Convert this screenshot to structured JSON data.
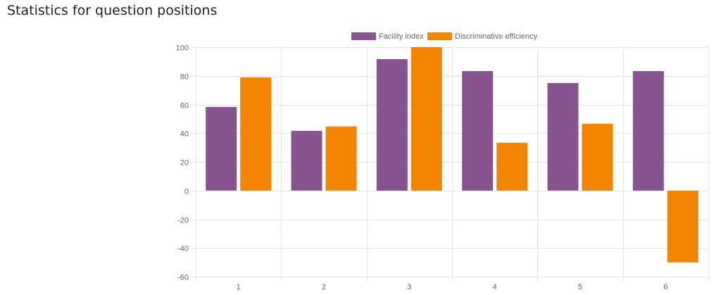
{
  "page": {
    "title": "Statistics for question positions"
  },
  "colors": {
    "facility": "#87548f",
    "discrimination": "#f28500",
    "grid": "#e6e6e6",
    "axis_text": "#666666"
  },
  "chart_data": {
    "type": "bar",
    "title": "",
    "xlabel": "",
    "ylabel": "",
    "categories": [
      "1",
      "2",
      "3",
      "4",
      "5",
      "6"
    ],
    "series": [
      {
        "name": "Facility index",
        "values": [
          58.33,
          41.67,
          91.67,
          83.33,
          75,
          83.33
        ]
      },
      {
        "name": "Discriminative efficiency",
        "values": [
          78.95,
          44.74,
          100,
          33.33,
          46.67,
          -50
        ]
      }
    ],
    "ylim": [
      -60,
      100
    ],
    "yticks": [
      "100",
      "80",
      "60",
      "40",
      "20",
      "0",
      "-20",
      "-40",
      "-60"
    ],
    "grid": true,
    "legend_position": "top-center"
  }
}
